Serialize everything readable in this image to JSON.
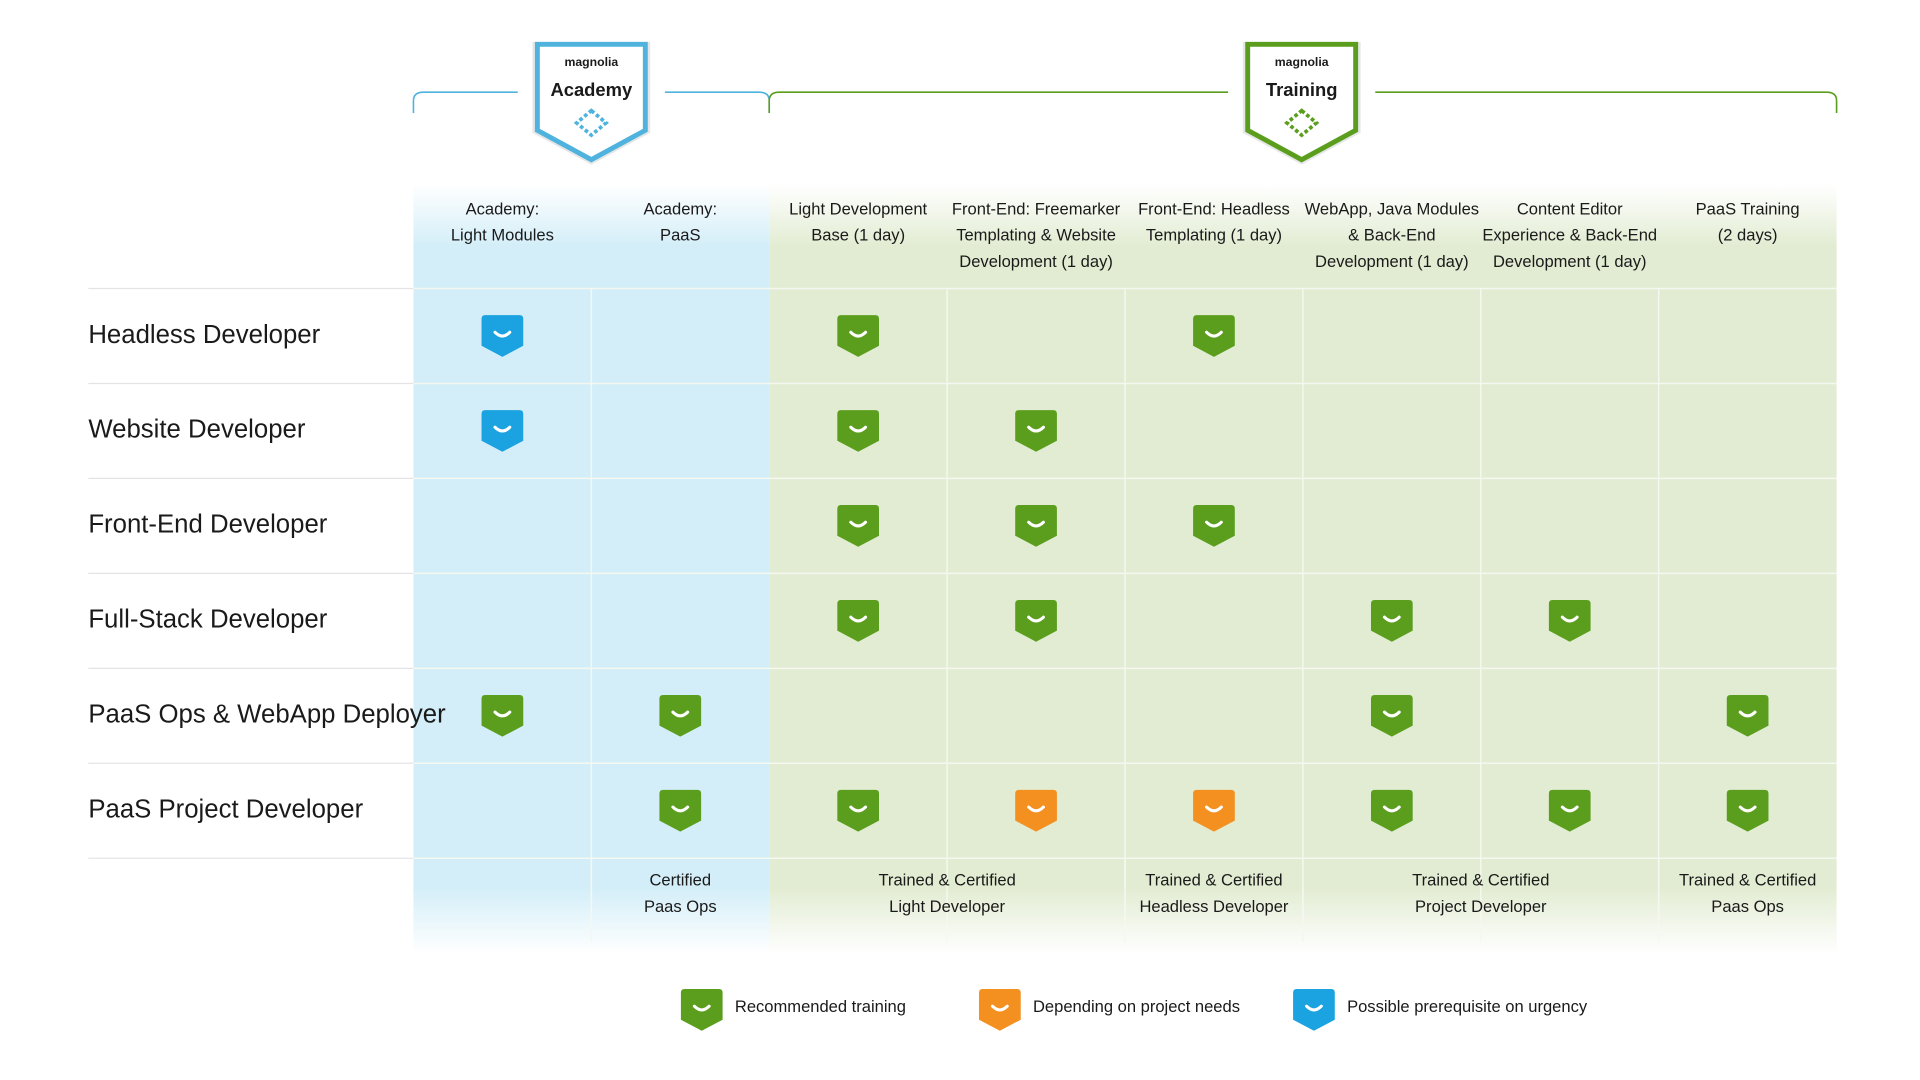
{
  "badges": [
    {
      "brand": "magnolia",
      "title": "Academy",
      "color": "#4fb3de"
    },
    {
      "brand": "magnolia",
      "title": "Training",
      "color": "#5b9e1e"
    }
  ],
  "columns": [
    [
      "Academy:",
      "Light Modules"
    ],
    [
      "Academy:",
      "PaaS"
    ],
    [
      "Light Development",
      "Base (1 day)"
    ],
    [
      "Front-End: Freemarker",
      "Templating & Website",
      "Development (1 day)"
    ],
    [
      "Front-End: Headless",
      "Templating (1 day)"
    ],
    [
      "WebApp, Java Modules",
      "& Back-End",
      "Development (1 day)"
    ],
    [
      "Content Editor",
      "Experience & Back-End",
      "Development (1 day)"
    ],
    [
      "PaaS Training",
      "(2 days)"
    ]
  ],
  "rows": [
    {
      "label": "Headless Developer",
      "cells": [
        "#1aa3e0",
        null,
        "#5b9e1e",
        null,
        "#5b9e1e",
        null,
        null,
        null
      ]
    },
    {
      "label": "Website Developer",
      "cells": [
        "#1aa3e0",
        null,
        "#5b9e1e",
        "#5b9e1e",
        null,
        null,
        null,
        null
      ]
    },
    {
      "label": "Front-End Developer",
      "cells": [
        null,
        null,
        "#5b9e1e",
        "#5b9e1e",
        "#5b9e1e",
        null,
        null,
        null
      ]
    },
    {
      "label": "Full-Stack Developer",
      "cells": [
        null,
        null,
        "#5b9e1e",
        "#5b9e1e",
        null,
        "#5b9e1e",
        "#5b9e1e",
        null
      ]
    },
    {
      "label": "PaaS Ops & WebApp Deployer",
      "cells": [
        "#5b9e1e",
        "#5b9e1e",
        null,
        null,
        null,
        "#5b9e1e",
        null,
        "#5b9e1e"
      ]
    },
    {
      "label": "PaaS Project Developer",
      "cells": [
        null,
        "#5b9e1e",
        "#5b9e1e",
        "#f39020",
        "#f39020",
        "#5b9e1e",
        "#5b9e1e",
        "#5b9e1e"
      ]
    }
  ],
  "footer": [
    {
      "span": 1,
      "lines": []
    },
    {
      "span": 1,
      "lines": [
        "Certified",
        "Paas Ops"
      ]
    },
    {
      "span": 2,
      "lines": [
        "Trained & Certified",
        "Light Developer"
      ]
    },
    {
      "span": 1,
      "lines": [
        "Trained & Certified",
        "Headless Developer"
      ]
    },
    {
      "span": 2,
      "lines": [
        "Trained & Certified",
        "Project Developer"
      ]
    },
    {
      "span": 1,
      "lines": [
        "Trained & Certified",
        "Paas Ops"
      ]
    }
  ],
  "legend": [
    {
      "label": "Recommended training",
      "color": "#5b9e1e"
    },
    {
      "label": "Depending on project needs",
      "color": "#f39020"
    },
    {
      "label": "Possible prerequisite on urgency",
      "color": "#1aa3e0"
    }
  ]
}
